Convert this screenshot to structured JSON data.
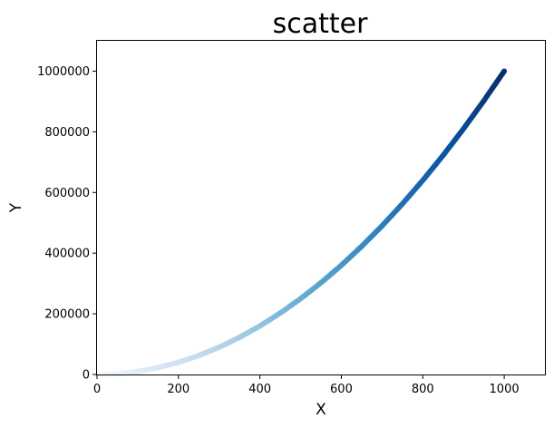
{
  "chart_data": {
    "type": "scatter",
    "title": "scatter",
    "xlabel": "X",
    "ylabel": "Y",
    "xlim": [
      0,
      1100
    ],
    "ylim": [
      0,
      1100000
    ],
    "xticks": [
      0,
      200,
      400,
      600,
      800,
      1000
    ],
    "yticks": [
      0,
      200000,
      400000,
      600000,
      800000,
      1000000
    ],
    "xtick_labels": [
      "0",
      "200",
      "400",
      "600",
      "800",
      "1000"
    ],
    "ytick_labels": [
      "0",
      "200000",
      "400000",
      "600000",
      "800000",
      "1000000"
    ],
    "grid": false,
    "colormap": [
      "#f7fbff",
      "#deebf7",
      "#c6dbef",
      "#9ecae1",
      "#6baed6",
      "#4292c6",
      "#2171b5",
      "#08519c",
      "#08306b"
    ],
    "series": [
      {
        "x": [
          0,
          50,
          100,
          150,
          200,
          250,
          300,
          350,
          400,
          450,
          500,
          550,
          600,
          650,
          700,
          750,
          800,
          850,
          900,
          950,
          1000
        ],
        "y": [
          0,
          2500,
          10000,
          22500,
          40000,
          62500,
          90000,
          122500,
          160000,
          202500,
          250000,
          302500,
          360000,
          422500,
          490000,
          562500,
          640000,
          722500,
          810000,
          902500,
          1000000
        ]
      }
    ]
  }
}
